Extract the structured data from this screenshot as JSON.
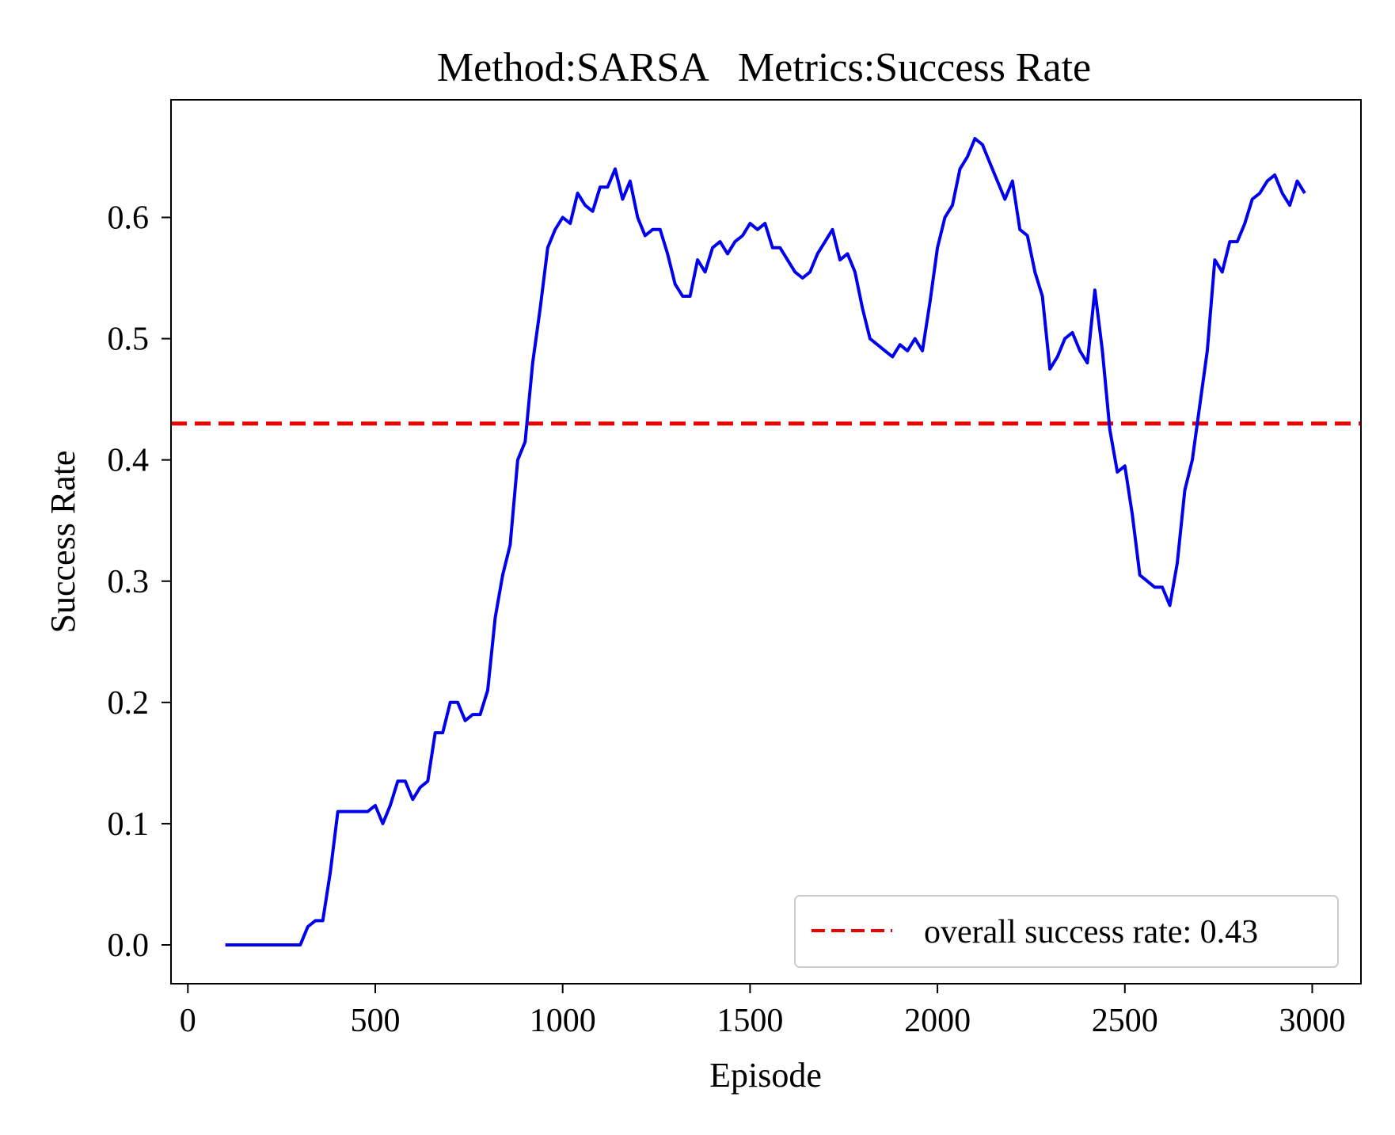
{
  "chart_data": {
    "type": "line",
    "title": "Method:SARSA   Metrics:Success Rate",
    "xlabel": "Episode",
    "ylabel": "Success Rate",
    "xlim": [
      -45,
      3130
    ],
    "ylim": [
      -0.032,
      0.697
    ],
    "xticks": [
      0,
      500,
      1000,
      1500,
      2000,
      2500,
      3000
    ],
    "xtick_labels": [
      "0",
      "500",
      "1000",
      "1500",
      "2000",
      "2500",
      "3000"
    ],
    "yticks": [
      0.0,
      0.1,
      0.2,
      0.3,
      0.4,
      0.5,
      0.6
    ],
    "ytick_labels": [
      "0.0",
      "0.1",
      "0.2",
      "0.3",
      "0.4",
      "0.5",
      "0.6"
    ],
    "grid": false,
    "legend_position": "bottom-right",
    "series": [
      {
        "color": "#0000ee",
        "style": "solid",
        "x": [
          100,
          120,
          140,
          160,
          180,
          200,
          220,
          240,
          260,
          280,
          300,
          320,
          340,
          360,
          380,
          400,
          420,
          440,
          460,
          480,
          500,
          520,
          540,
          560,
          580,
          600,
          620,
          640,
          660,
          680,
          700,
          720,
          740,
          760,
          780,
          800,
          820,
          840,
          860,
          880,
          900,
          920,
          940,
          960,
          980,
          1000,
          1020,
          1040,
          1060,
          1080,
          1100,
          1120,
          1140,
          1160,
          1180,
          1200,
          1220,
          1240,
          1260,
          1280,
          1300,
          1320,
          1340,
          1360,
          1380,
          1400,
          1420,
          1440,
          1460,
          1480,
          1500,
          1520,
          1540,
          1560,
          1580,
          1600,
          1620,
          1640,
          1660,
          1680,
          1700,
          1720,
          1740,
          1760,
          1780,
          1800,
          1820,
          1840,
          1860,
          1880,
          1900,
          1920,
          1940,
          1960,
          1980,
          2000,
          2020,
          2040,
          2060,
          2080,
          2100,
          2120,
          2140,
          2160,
          2180,
          2200,
          2220,
          2240,
          2260,
          2280,
          2300,
          2320,
          2340,
          2360,
          2380,
          2400,
          2420,
          2440,
          2460,
          2480,
          2500,
          2520,
          2540,
          2560,
          2580,
          2600,
          2620,
          2640,
          2660,
          2680,
          2700,
          2720,
          2740,
          2760,
          2780,
          2800,
          2820,
          2840,
          2860,
          2880,
          2900,
          2920,
          2940,
          2960,
          2980
        ],
        "y": [
          0.0,
          0.0,
          0.0,
          0.0,
          0.0,
          0.0,
          0.0,
          0.0,
          0.0,
          0.0,
          0.0,
          0.015,
          0.02,
          0.02,
          0.06,
          0.11,
          0.11,
          0.11,
          0.11,
          0.11,
          0.115,
          0.1,
          0.115,
          0.135,
          0.135,
          0.12,
          0.13,
          0.135,
          0.175,
          0.175,
          0.2,
          0.2,
          0.185,
          0.19,
          0.19,
          0.21,
          0.27,
          0.305,
          0.33,
          0.4,
          0.415,
          0.48,
          0.525,
          0.575,
          0.59,
          0.6,
          0.595,
          0.62,
          0.61,
          0.605,
          0.625,
          0.625,
          0.64,
          0.615,
          0.63,
          0.6,
          0.585,
          0.59,
          0.59,
          0.57,
          0.545,
          0.535,
          0.535,
          0.565,
          0.555,
          0.575,
          0.58,
          0.57,
          0.58,
          0.585,
          0.595,
          0.59,
          0.595,
          0.575,
          0.575,
          0.565,
          0.555,
          0.55,
          0.555,
          0.57,
          0.58,
          0.59,
          0.565,
          0.57,
          0.555,
          0.525,
          0.5,
          0.495,
          0.49,
          0.485,
          0.495,
          0.49,
          0.5,
          0.49,
          0.53,
          0.575,
          0.6,
          0.61,
          0.64,
          0.65,
          0.665,
          0.66,
          0.645,
          0.63,
          0.615,
          0.63,
          0.59,
          0.585,
          0.555,
          0.535,
          0.475,
          0.485,
          0.5,
          0.505,
          0.49,
          0.48,
          0.54,
          0.49,
          0.425,
          0.39,
          0.395,
          0.355,
          0.305,
          0.3,
          0.295,
          0.295,
          0.28,
          0.315,
          0.375,
          0.4,
          0.445,
          0.49,
          0.565,
          0.555,
          0.58,
          0.58,
          0.595,
          0.615,
          0.62,
          0.63,
          0.635,
          0.62,
          0.61,
          0.63,
          0.62
        ]
      }
    ],
    "reference_line": {
      "y": 0.43,
      "color": "#ee0000",
      "style": "dashed",
      "label": "overall success rate: 0.43"
    }
  }
}
